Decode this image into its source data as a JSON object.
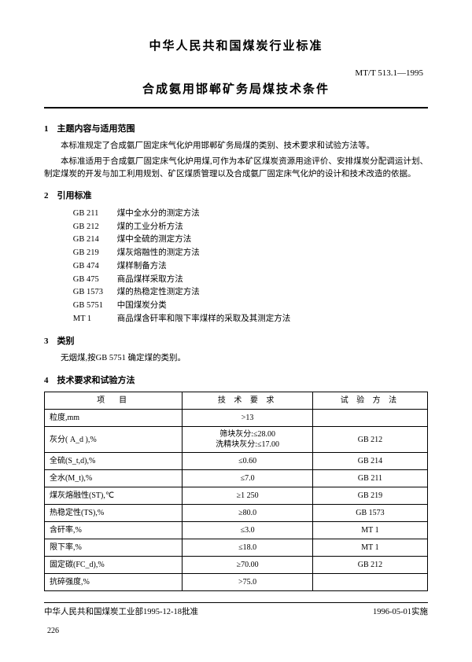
{
  "header": {
    "org": "中华人民共和国煤炭行业标准",
    "code": "MT/T 513.1—1995",
    "title": "合成氨用邯郸矿务局煤技术条件"
  },
  "sections": {
    "s1": {
      "num": "1",
      "title": "主题内容与适用范围",
      "p1": "本标准规定了合成氨厂固定床气化炉用邯郸矿务局煤的类别、技术要求和试验方法等。",
      "p2": "本标准适用于合成氨厂固定床气化炉用煤,可作为本矿区煤炭资源用途评价、安排煤炭分配调运计划、制定煤炭的开发与加工利用规划、矿区煤质管理以及合成氨厂固定床气化炉的设计和技术改造的依据。"
    },
    "s2": {
      "num": "2",
      "title": "引用标准",
      "refs": [
        {
          "code": "GB 211",
          "name": "煤中全水分的测定方法"
        },
        {
          "code": "GB 212",
          "name": "煤的工业分析方法"
        },
        {
          "code": "GB 214",
          "name": "煤中全硫的测定方法"
        },
        {
          "code": "GB 219",
          "name": "煤灰熔融性的测定方法"
        },
        {
          "code": "GB 474",
          "name": "煤样制备方法"
        },
        {
          "code": "GB 475",
          "name": "商品煤样采取方法"
        },
        {
          "code": "GB 1573",
          "name": "煤的热稳定性测定方法"
        },
        {
          "code": "GB 5751",
          "name": "中国煤炭分类"
        },
        {
          "code": "MT 1",
          "name": "商品煤含矸率和限下率煤样的采取及其测定方法"
        }
      ]
    },
    "s3": {
      "num": "3",
      "title": "类别",
      "p1": "无烟煤,按GB 5751 确定煤的类别。"
    },
    "s4": {
      "num": "4",
      "title": "技术要求和试验方法"
    }
  },
  "table": {
    "headers": {
      "item": "项　目",
      "req": "技 术 要 求",
      "method": "试 验 方 法"
    },
    "rows": [
      {
        "item": "粒度,mm",
        "req": ">13",
        "method": ""
      },
      {
        "item": "灰分( A_d ),%",
        "req_l1": "筛块灰分:≤28.00",
        "req_l2": "洗精块灰分:≤17.00",
        "method": "GB 212"
      },
      {
        "item": "全硫(S_t,d),%",
        "req": "≤0.60",
        "method": "GB 214"
      },
      {
        "item": "全水(M_t),%",
        "req": "≤7.0",
        "method": "GB 211"
      },
      {
        "item": "煤灰熔融性(ST),℃",
        "req": "≥1 250",
        "method": "GB 219"
      },
      {
        "item": "热稳定性(TS),%",
        "req": "≥80.0",
        "method": "GB 1573"
      },
      {
        "item": "含矸率,%",
        "req": "≤3.0",
        "method": "MT 1"
      },
      {
        "item": "限下率,%",
        "req": "≤18.0",
        "method": "MT 1"
      },
      {
        "item": "固定碳(FC_d),%",
        "req": "≥70.00",
        "method": "GB 212"
      },
      {
        "item": "抗碎强度,%",
        "req": ">75.0",
        "method": ""
      }
    ]
  },
  "footer": {
    "left": "中华人民共和国煤炭工业部1995-12-18批准",
    "right": "1996-05-01实施",
    "page": "226"
  }
}
